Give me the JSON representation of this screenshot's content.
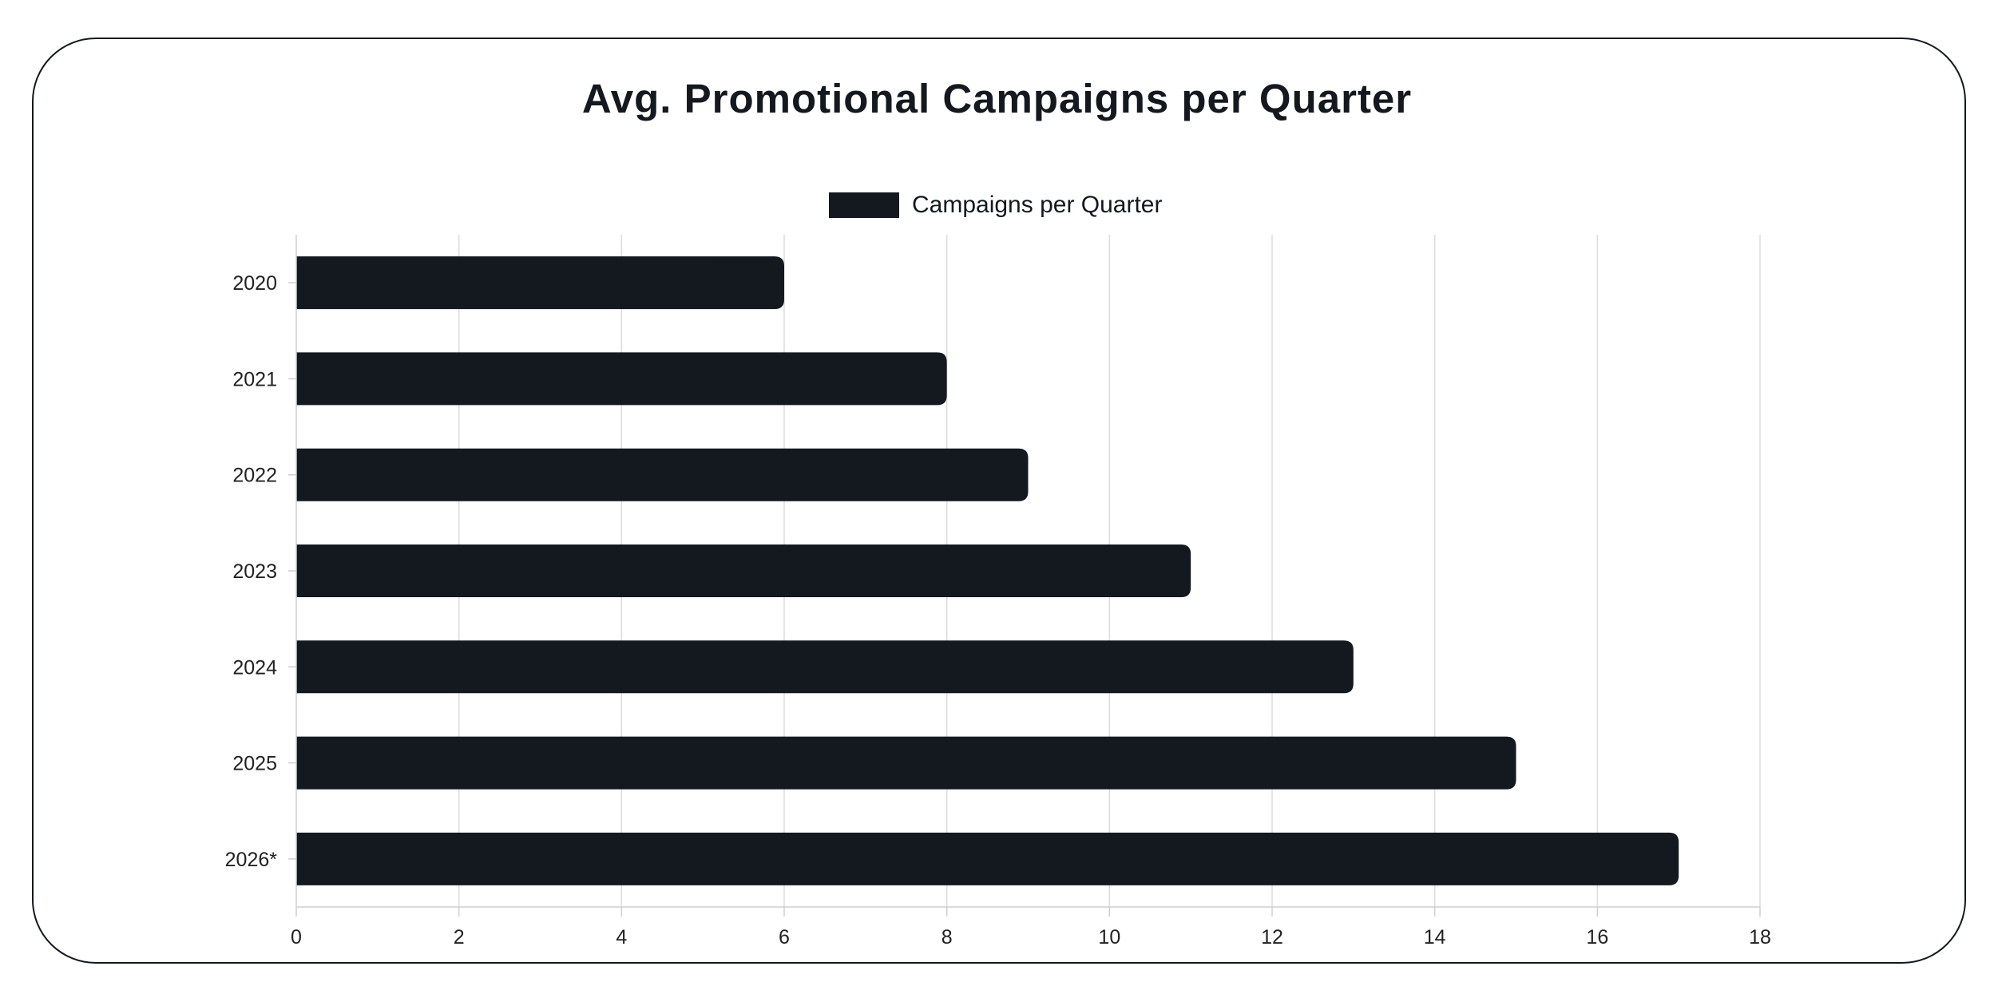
{
  "chart_data": {
    "type": "bar",
    "orientation": "horizontal",
    "title": "Avg. Promotional Campaigns per Quarter",
    "xlabel": "",
    "ylabel": "",
    "categories": [
      "2020",
      "2021",
      "2022",
      "2023",
      "2024",
      "2025",
      "2026*"
    ],
    "series": [
      {
        "name": "Campaigns per Quarter",
        "values": [
          6,
          8,
          9,
          11,
          13,
          15,
          17
        ],
        "color": "#14181f"
      }
    ],
    "xlim": [
      0,
      18
    ],
    "xticks": [
      "0",
      "2",
      "4",
      "6",
      "8",
      "10",
      "12",
      "14",
      "16",
      "18"
    ],
    "grid": true,
    "legend_position": "top-center"
  }
}
